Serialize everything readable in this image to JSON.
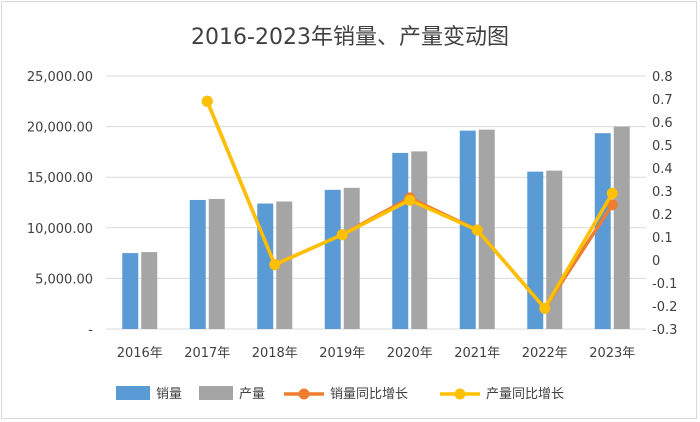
{
  "colors": {
    "sales": "#5b9bd5",
    "production": "#a5a5a5",
    "sales_growth": "#ed7d31",
    "production_growth": "#ffc000",
    "grid": "#d9d9d9",
    "text": "#404040"
  },
  "chart_data": {
    "type": "bar",
    "title": "2016-2023年销量、产量变动图",
    "categories": [
      "2016年",
      "2017年",
      "2018年",
      "2019年",
      "2020年",
      "2021年",
      "2022年",
      "2023年"
    ],
    "y_left": {
      "ylim": [
        0,
        25000
      ],
      "ticks": [
        0,
        5000,
        10000,
        15000,
        20000,
        25000
      ],
      "tick_labels": [
        "-",
        "5,000.00",
        "10,000.00",
        "15,000.00",
        "20,000.00",
        "25,000.00"
      ]
    },
    "y_right": {
      "ylim": [
        -0.3,
        0.8
      ],
      "ticks": [
        -0.3,
        -0.2,
        -0.1,
        0,
        0.1,
        0.2,
        0.3,
        0.4,
        0.5,
        0.6,
        0.7,
        0.8
      ],
      "tick_labels": [
        "-0.3",
        "-0.2",
        "-0.1",
        "0",
        "0.1",
        "0.2",
        "0.3",
        "0.4",
        "0.5",
        "0.6",
        "0.7",
        "0.8"
      ]
    },
    "series": [
      {
        "name": "销量",
        "type": "bar",
        "axis": "left",
        "values": [
          7500,
          12750,
          12400,
          13750,
          17400,
          19600,
          15550,
          19350
        ]
      },
      {
        "name": "产量",
        "type": "bar",
        "axis": "left",
        "values": [
          7600,
          12850,
          12600,
          13950,
          17550,
          19700,
          15650,
          20000
        ]
      },
      {
        "name": "销量同比增长",
        "type": "line",
        "axis": "right",
        "values": [
          null,
          0.69,
          -0.02,
          0.11,
          0.27,
          0.13,
          -0.21,
          0.24
        ]
      },
      {
        "name": "产量同比增长",
        "type": "line",
        "axis": "right",
        "values": [
          null,
          0.69,
          -0.02,
          0.11,
          0.26,
          0.13,
          -0.21,
          0.29
        ]
      }
    ],
    "legend_position": "bottom",
    "grid": true
  }
}
